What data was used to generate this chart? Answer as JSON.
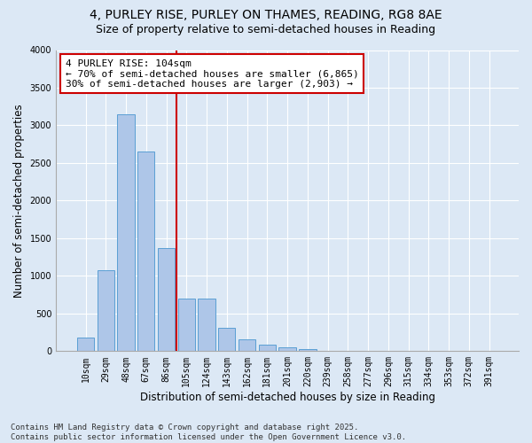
{
  "title_line1": "4, PURLEY RISE, PURLEY ON THAMES, READING, RG8 8AE",
  "title_line2": "Size of property relative to semi-detached houses in Reading",
  "xlabel": "Distribution of semi-detached houses by size in Reading",
  "ylabel": "Number of semi-detached properties",
  "bar_labels": [
    "10sqm",
    "29sqm",
    "48sqm",
    "67sqm",
    "86sqm",
    "105sqm",
    "124sqm",
    "143sqm",
    "162sqm",
    "181sqm",
    "201sqm",
    "220sqm",
    "239sqm",
    "258sqm",
    "277sqm",
    "296sqm",
    "315sqm",
    "334sqm",
    "353sqm",
    "372sqm",
    "391sqm"
  ],
  "bar_values": [
    175,
    1075,
    3150,
    2650,
    1375,
    700,
    700,
    310,
    160,
    90,
    50,
    30,
    0,
    0,
    0,
    0,
    0,
    0,
    0,
    0,
    0
  ],
  "bar_color": "#aec6e8",
  "bar_edge_color": "#5a9fd4",
  "property_line_color": "#cc0000",
  "annotation_text": "4 PURLEY RISE: 104sqm\n← 70% of semi-detached houses are smaller (6,865)\n30% of semi-detached houses are larger (2,903) →",
  "annotation_box_color": "#ffffff",
  "annotation_box_edge_color": "#cc0000",
  "ylim": [
    0,
    4000
  ],
  "yticks": [
    0,
    500,
    1000,
    1500,
    2000,
    2500,
    3000,
    3500,
    4000
  ],
  "plot_bg_color": "#dce8f5",
  "fig_bg_color": "#dce8f5",
  "footer_text": "Contains HM Land Registry data © Crown copyright and database right 2025.\nContains public sector information licensed under the Open Government Licence v3.0.",
  "title_fontsize": 10,
  "subtitle_fontsize": 9,
  "axis_label_fontsize": 8.5,
  "tick_fontsize": 7,
  "annotation_fontsize": 8,
  "footer_fontsize": 6.5
}
